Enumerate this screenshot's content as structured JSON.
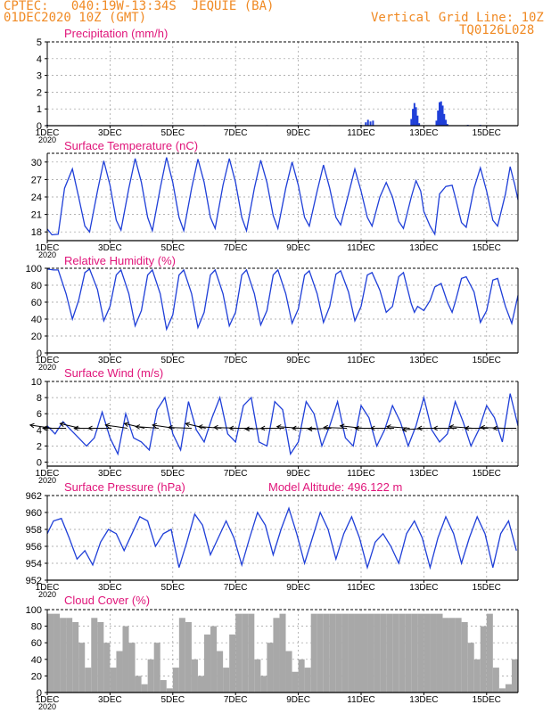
{
  "header": {
    "line1": "CPTEC:   040:19W-13:34S  JEQUIE (BA)",
    "line2": "01DEC2020 10Z (GMT)",
    "right1": "Vertical Grid Line: 10Z",
    "right2": "TQ0126L028"
  },
  "colors": {
    "header": "#f08a24",
    "title": "#e0157a",
    "series": "#1f3fd8",
    "wind_barb": "#000000",
    "cloud": "#a8a8a8",
    "grid": "#9a9a9a"
  },
  "x_axis": {
    "start_day": 1,
    "end_day": 16,
    "tick_labels": [
      "1DEC",
      "3DEC",
      "5DEC",
      "7DEC",
      "9DEC",
      "11DEC",
      "13DEC",
      "15DEC"
    ],
    "tick_days": [
      1,
      3,
      5,
      7,
      9,
      11,
      13,
      15
    ],
    "year_label": "2020"
  },
  "chart_data": [
    {
      "type": "bar",
      "title": "Precipitation (mm/h)",
      "ylim": [
        0,
        5
      ],
      "yticks": [
        0,
        1,
        2,
        3,
        4,
        5
      ],
      "x": [
        1.0,
        2.0,
        3.0,
        4.0,
        5.0,
        6.0,
        7.0,
        8.0,
        9.0,
        10.0,
        11.0,
        11.15,
        11.22,
        11.3,
        11.38,
        12.6,
        12.65,
        12.7,
        12.75,
        12.8,
        12.85,
        13.4,
        13.45,
        13.5,
        13.55,
        13.6,
        13.65,
        13.7,
        13.75,
        14.4,
        14.8
      ],
      "values": [
        0.05,
        0.03,
        0.03,
        0.03,
        0.03,
        0.03,
        0.03,
        0.03,
        0.03,
        0.03,
        0.05,
        0.2,
        0.35,
        0.25,
        0.3,
        0.4,
        1.0,
        1.35,
        1.1,
        0.6,
        0.15,
        0.3,
        0.9,
        1.4,
        1.45,
        1.2,
        0.7,
        0.35,
        0.1,
        0.05,
        0.05
      ]
    },
    {
      "type": "line",
      "title": "Surface Temperature (nC)",
      "ylim": [
        16.5,
        31.5
      ],
      "yticks": [
        18,
        21,
        24,
        27,
        30
      ],
      "x": [
        1.0,
        1.15,
        1.35,
        1.55,
        1.8,
        2.0,
        2.2,
        2.35,
        2.6,
        2.8,
        3.0,
        3.2,
        3.35,
        3.6,
        3.8,
        4.0,
        4.2,
        4.35,
        4.6,
        4.8,
        5.0,
        5.2,
        5.35,
        5.6,
        5.8,
        6.0,
        6.2,
        6.35,
        6.6,
        6.8,
        7.0,
        7.2,
        7.35,
        7.6,
        7.8,
        8.0,
        8.2,
        8.35,
        8.6,
        8.8,
        9.0,
        9.2,
        9.35,
        9.6,
        9.8,
        10.0,
        10.2,
        10.35,
        10.6,
        10.8,
        11.0,
        11.2,
        11.35,
        11.6,
        11.8,
        12.0,
        12.2,
        12.35,
        12.6,
        12.75,
        12.9,
        13.0,
        13.2,
        13.35,
        13.5,
        13.7,
        13.9,
        14.0,
        14.2,
        14.35,
        14.6,
        14.8,
        15.0,
        15.2,
        15.35,
        15.6,
        15.75,
        15.9,
        16.0
      ],
      "values": [
        18.5,
        17.5,
        17.6,
        25.5,
        28.8,
        24.0,
        19.0,
        18.0,
        25.0,
        30.2,
        26.0,
        20.0,
        18.3,
        25.5,
        30.6,
        26.5,
        20.5,
        18.2,
        25.5,
        30.8,
        26.5,
        20.5,
        18.2,
        25.5,
        30.5,
        26.5,
        20.5,
        18.6,
        26.0,
        30.6,
        26.5,
        20.5,
        18.2,
        25.5,
        30.3,
        26.5,
        20.8,
        18.6,
        25.5,
        30.0,
        26.0,
        20.5,
        19.0,
        25.0,
        29.5,
        25.5,
        20.5,
        19.2,
        24.5,
        28.8,
        25.0,
        20.5,
        19.0,
        24.0,
        26.5,
        24.0,
        19.8,
        18.6,
        24.0,
        26.8,
        25.0,
        21.5,
        19.0,
        17.6,
        24.5,
        25.8,
        26.0,
        24.0,
        19.6,
        18.8,
        25.5,
        29.0,
        25.0,
        20.0,
        19.0,
        24.5,
        29.2,
        26.0,
        23.5
      ]
    },
    {
      "type": "line",
      "title": "Relative Humidity (%)",
      "ylim": [
        0,
        100
      ],
      "yticks": [
        0,
        20,
        40,
        60,
        80,
        100
      ],
      "x": [
        1.0,
        1.2,
        1.35,
        1.6,
        1.8,
        2.0,
        2.2,
        2.35,
        2.6,
        2.8,
        3.0,
        3.2,
        3.35,
        3.6,
        3.8,
        4.0,
        4.2,
        4.35,
        4.6,
        4.8,
        5.0,
        5.2,
        5.35,
        5.6,
        5.8,
        6.0,
        6.2,
        6.35,
        6.6,
        6.8,
        7.0,
        7.2,
        7.35,
        7.6,
        7.8,
        8.0,
        8.2,
        8.35,
        8.6,
        8.8,
        9.0,
        9.2,
        9.35,
        9.6,
        9.8,
        10.0,
        10.2,
        10.35,
        10.6,
        10.8,
        11.0,
        11.2,
        11.35,
        11.6,
        11.8,
        12.0,
        12.2,
        12.35,
        12.6,
        12.7,
        12.8,
        13.0,
        13.2,
        13.35,
        13.55,
        13.75,
        13.9,
        14.0,
        14.2,
        14.35,
        14.6,
        14.8,
        15.0,
        15.2,
        15.35,
        15.6,
        15.8,
        16.0
      ],
      "values": [
        99,
        98,
        98,
        70,
        40,
        62,
        95,
        99,
        75,
        38,
        55,
        92,
        98,
        70,
        32,
        50,
        92,
        98,
        70,
        28,
        45,
        92,
        98,
        70,
        30,
        48,
        92,
        98,
        70,
        32,
        48,
        92,
        98,
        70,
        33,
        50,
        92,
        98,
        70,
        35,
        52,
        92,
        97,
        70,
        36,
        55,
        93,
        97,
        72,
        38,
        55,
        92,
        95,
        74,
        48,
        55,
        90,
        95,
        58,
        48,
        55,
        50,
        62,
        78,
        82,
        60,
        48,
        60,
        88,
        90,
        72,
        36,
        50,
        86,
        88,
        55,
        35,
        68
      ]
    },
    {
      "type": "line",
      "title": "Surface Wind (m/s)",
      "ylim": [
        -0.5,
        10
      ],
      "yticks": [
        0,
        2,
        4,
        6,
        8,
        10
      ],
      "x": [
        1.0,
        1.25,
        1.5,
        1.75,
        2.0,
        2.25,
        2.5,
        2.75,
        3.0,
        3.25,
        3.5,
        3.75,
        4.0,
        4.25,
        4.5,
        4.75,
        5.0,
        5.25,
        5.5,
        5.75,
        6.0,
        6.25,
        6.5,
        6.75,
        7.0,
        7.25,
        7.5,
        7.75,
        8.0,
        8.25,
        8.5,
        8.75,
        9.0,
        9.25,
        9.5,
        9.75,
        10.0,
        10.25,
        10.5,
        10.75,
        11.0,
        11.25,
        11.5,
        11.75,
        12.0,
        12.25,
        12.5,
        12.75,
        13.0,
        13.25,
        13.5,
        13.75,
        14.0,
        14.25,
        14.5,
        14.75,
        15.0,
        15.25,
        15.5,
        15.75,
        16.0
      ],
      "values": [
        4.5,
        3.5,
        5.0,
        4.0,
        3.0,
        2.0,
        3.0,
        6.2,
        3.0,
        1.0,
        6.0,
        3.0,
        2.5,
        1.5,
        6.5,
        8.0,
        3.5,
        1.5,
        7.5,
        4.0,
        2.5,
        5.5,
        8.0,
        3.5,
        2.5,
        7.0,
        8.0,
        2.5,
        2.0,
        7.5,
        6.5,
        1.0,
        2.5,
        7.5,
        6.0,
        2.0,
        4.5,
        7.5,
        3.0,
        2.0,
        7.0,
        5.5,
        2.0,
        4.0,
        7.0,
        5.0,
        2.0,
        4.5,
        8.0,
        4.0,
        2.5,
        3.5,
        7.5,
        5.0,
        2.0,
        4.0,
        7.0,
        5.5,
        2.5,
        8.5,
        4.5
      ],
      "barbs_x": [
        1.15,
        1.6,
        2.05,
        2.6,
        3.05,
        3.55,
        4.1,
        4.55,
        5.05,
        5.6,
        6.05,
        6.55,
        7.05,
        7.55,
        8.05,
        8.55,
        9.05,
        9.55,
        10.05,
        10.55,
        11.05,
        11.55,
        12.05,
        12.55,
        13.05,
        13.55,
        14.05,
        14.55,
        15.05,
        15.55,
        15.95
      ],
      "barbs_dir_deg": [
        200,
        180,
        210,
        180,
        180,
        200,
        210,
        190,
        200,
        185,
        210,
        190,
        185,
        180,
        175,
        180,
        190,
        180,
        175,
        185,
        195,
        180,
        180,
        190,
        170,
        180,
        180,
        190,
        180,
        185,
        180
      ]
    },
    {
      "type": "line",
      "title": "Surface Pressure (hPa)",
      "annotation": "Model Altitude: 496.122 m",
      "ylim": [
        952,
        962
      ],
      "yticks": [
        952,
        954,
        956,
        958,
        960,
        962
      ],
      "x": [
        1.0,
        1.2,
        1.45,
        1.7,
        1.95,
        2.2,
        2.45,
        2.7,
        2.95,
        3.2,
        3.45,
        3.7,
        3.95,
        4.2,
        4.45,
        4.7,
        4.95,
        5.2,
        5.45,
        5.7,
        5.95,
        6.2,
        6.45,
        6.7,
        6.95,
        7.2,
        7.45,
        7.7,
        7.95,
        8.2,
        8.45,
        8.7,
        8.95,
        9.2,
        9.45,
        9.7,
        9.95,
        10.2,
        10.45,
        10.7,
        10.95,
        11.2,
        11.45,
        11.7,
        11.95,
        12.2,
        12.45,
        12.7,
        12.95,
        13.2,
        13.45,
        13.7,
        13.95,
        14.2,
        14.45,
        14.7,
        14.95,
        15.2,
        15.45,
        15.7,
        15.95
      ],
      "values": [
        957.5,
        959.0,
        959.3,
        957.0,
        954.5,
        955.5,
        953.8,
        956.5,
        958.0,
        957.5,
        955.5,
        957.5,
        959.5,
        959.0,
        956.0,
        957.5,
        958.0,
        953.5,
        956.5,
        959.8,
        958.5,
        955.0,
        957.0,
        959.0,
        957.0,
        953.8,
        957.0,
        960.0,
        958.5,
        955.0,
        958.0,
        960.5,
        957.5,
        954.0,
        957.0,
        960.0,
        958.0,
        954.5,
        957.5,
        959.5,
        957.0,
        953.5,
        956.5,
        957.5,
        956.0,
        954.0,
        957.5,
        959.0,
        957.0,
        953.5,
        957.0,
        959.5,
        957.5,
        954.0,
        957.0,
        959.5,
        957.5,
        953.5,
        957.5,
        959.0,
        955.5
      ]
    },
    {
      "type": "area",
      "title": "Cloud Cover (%)",
      "ylim": [
        0,
        100
      ],
      "yticks": [
        0,
        20,
        40,
        60,
        80,
        100
      ],
      "x": [
        1.0,
        1.2,
        1.4,
        1.6,
        1.8,
        2.0,
        2.2,
        2.4,
        2.6,
        2.8,
        3.0,
        3.2,
        3.4,
        3.6,
        3.8,
        4.0,
        4.2,
        4.4,
        4.6,
        4.8,
        5.0,
        5.2,
        5.4,
        5.6,
        5.8,
        6.0,
        6.2,
        6.4,
        6.6,
        6.8,
        7.0,
        7.2,
        7.4,
        7.6,
        7.8,
        8.0,
        8.2,
        8.4,
        8.6,
        8.8,
        9.0,
        9.2,
        9.4,
        9.6,
        9.8,
        10.0,
        10.2,
        10.4,
        10.6,
        10.8,
        11.0,
        11.2,
        11.4,
        11.6,
        11.8,
        12.0,
        12.2,
        12.4,
        12.6,
        12.8,
        13.0,
        13.2,
        13.4,
        13.6,
        13.8,
        14.0,
        14.2,
        14.4,
        14.6,
        14.8,
        15.0,
        15.2,
        15.4,
        15.6,
        15.8,
        16.0
      ],
      "values": [
        95,
        95,
        90,
        90,
        85,
        60,
        30,
        90,
        85,
        60,
        30,
        50,
        80,
        60,
        20,
        10,
        40,
        60,
        15,
        5,
        30,
        90,
        85,
        40,
        20,
        70,
        80,
        50,
        30,
        70,
        95,
        95,
        95,
        40,
        20,
        60,
        90,
        95,
        50,
        25,
        40,
        30,
        95,
        95,
        95,
        95,
        95,
        95,
        95,
        95,
        95,
        95,
        95,
        95,
        95,
        95,
        95,
        95,
        95,
        95,
        95,
        95,
        95,
        90,
        90,
        90,
        85,
        60,
        40,
        80,
        95,
        30,
        5,
        10,
        40,
        70
      ]
    }
  ]
}
